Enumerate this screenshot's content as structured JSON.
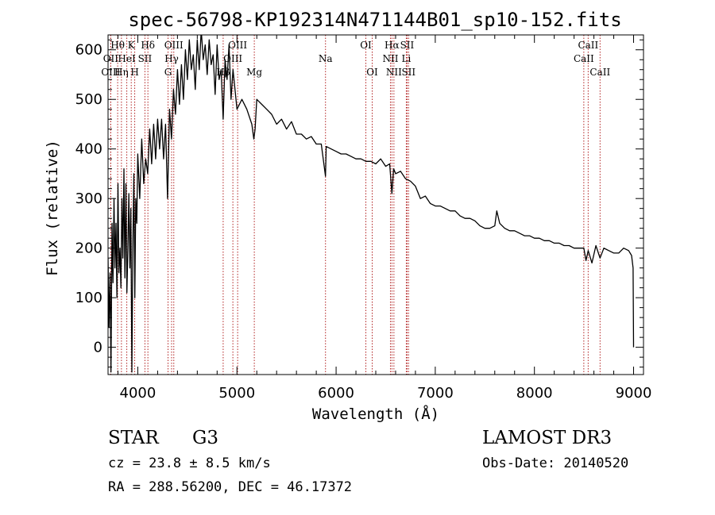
{
  "chart_data": {
    "type": "line",
    "title": "spec-56798-KP192314N471144B01_sp10-152.fits",
    "xlabel": "Wavelength (Å)",
    "ylabel": "Flux (relative)",
    "xlim": [
      3700,
      9100
    ],
    "ylim": [
      -55,
      630
    ],
    "xticks": [
      4000,
      5000,
      6000,
      7000,
      8000,
      9000
    ],
    "yticks": [
      0,
      100,
      200,
      300,
      400,
      500,
      600
    ],
    "line_color": "#000000",
    "marker_color": "#b22222",
    "series": [
      {
        "name": "flux",
        "x": [
          3700,
          3710,
          3720,
          3730,
          3740,
          3750,
          3760,
          3770,
          3780,
          3790,
          3800,
          3810,
          3820,
          3830,
          3840,
          3850,
          3860,
          3870,
          3880,
          3890,
          3900,
          3910,
          3920,
          3930,
          3940,
          3950,
          3960,
          3970,
          3980,
          3990,
          4000,
          4020,
          4040,
          4060,
          4080,
          4100,
          4120,
          4140,
          4160,
          4180,
          4200,
          4220,
          4240,
          4260,
          4280,
          4300,
          4320,
          4340,
          4360,
          4380,
          4400,
          4420,
          4440,
          4460,
          4480,
          4500,
          4520,
          4540,
          4560,
          4580,
          4600,
          4620,
          4640,
          4660,
          4680,
          4700,
          4720,
          4740,
          4760,
          4780,
          4800,
          4820,
          4840,
          4861,
          4880,
          4900,
          4920,
          4940,
          4960,
          4980,
          5000,
          5050,
          5100,
          5150,
          5170,
          5183,
          5200,
          5250,
          5300,
          5350,
          5400,
          5450,
          5500,
          5550,
          5600,
          5650,
          5700,
          5750,
          5800,
          5850,
          5893,
          5900,
          5950,
          6000,
          6050,
          6100,
          6150,
          6200,
          6250,
          6300,
          6350,
          6400,
          6450,
          6500,
          6540,
          6563,
          6580,
          6600,
          6650,
          6700,
          6750,
          6800,
          6850,
          6900,
          6950,
          7000,
          7050,
          7100,
          7150,
          7200,
          7250,
          7300,
          7350,
          7400,
          7450,
          7500,
          7550,
          7600,
          7620,
          7650,
          7700,
          7750,
          7800,
          7850,
          7900,
          7950,
          8000,
          8050,
          8100,
          8150,
          8200,
          8250,
          8300,
          8350,
          8400,
          8450,
          8498,
          8520,
          8542,
          8580,
          8620,
          8662,
          8700,
          8750,
          8800,
          8850,
          8900,
          8950,
          8980,
          8995,
          9000
        ],
        "y": [
          180,
          40,
          150,
          -50,
          250,
          130,
          300,
          160,
          250,
          100,
          330,
          150,
          200,
          120,
          300,
          180,
          360,
          140,
          330,
          110,
          200,
          310,
          160,
          280,
          -50,
          200,
          350,
          100,
          300,
          250,
          390,
          300,
          420,
          330,
          380,
          350,
          440,
          370,
          450,
          380,
          460,
          400,
          460,
          380,
          450,
          300,
          480,
          420,
          520,
          470,
          560,
          490,
          570,
          500,
          600,
          540,
          620,
          560,
          590,
          520,
          620,
          560,
          640,
          580,
          610,
          550,
          620,
          570,
          590,
          510,
          610,
          540,
          560,
          460,
          580,
          540,
          610,
          500,
          560,
          520,
          480,
          500,
          480,
          450,
          420,
          440,
          500,
          490,
          480,
          470,
          450,
          460,
          440,
          455,
          430,
          430,
          420,
          425,
          410,
          410,
          345,
          405,
          400,
          395,
          390,
          390,
          385,
          380,
          380,
          375,
          375,
          370,
          380,
          365,
          370,
          310,
          360,
          350,
          355,
          340,
          335,
          325,
          300,
          305,
          290,
          285,
          285,
          280,
          275,
          275,
          265,
          260,
          260,
          255,
          245,
          240,
          240,
          245,
          275,
          250,
          240,
          235,
          235,
          230,
          225,
          225,
          220,
          220,
          215,
          215,
          210,
          210,
          205,
          205,
          200,
          200,
          200,
          175,
          195,
          170,
          205,
          180,
          200,
          195,
          190,
          190,
          200,
          195,
          185,
          160,
          0
        ]
      }
    ],
    "line_markers": [
      {
        "name": "Hθ",
        "x": 3797,
        "row": 0
      },
      {
        "name": "OII",
        "x": 3727,
        "row": 1
      },
      {
        "name": "OIII",
        "x": 3727,
        "row": 2
      },
      {
        "name": "K",
        "x": 3934,
        "row": 0
      },
      {
        "name": "HeI",
        "x": 3889,
        "row": 1
      },
      {
        "name": "Hη",
        "x": 3835,
        "row": 2
      },
      {
        "name": "Hδ",
        "x": 4102,
        "row": 0
      },
      {
        "name": "SII",
        "x": 4072,
        "row": 1
      },
      {
        "name": "H",
        "x": 3969,
        "row": 2
      },
      {
        "name": "OIII",
        "x": 4363,
        "row": 0
      },
      {
        "name": "Hγ",
        "x": 4341,
        "row": 1
      },
      {
        "name": "G",
        "x": 4305,
        "row": 2
      },
      {
        "name": "OIII",
        "x": 5007,
        "row": 0
      },
      {
        "name": "OIII",
        "x": 4959,
        "row": 1
      },
      {
        "name": "Hβ",
        "x": 4861,
        "row": 2
      },
      {
        "name": "Mg",
        "x": 5175,
        "row": 2
      },
      {
        "name": "Na",
        "x": 5893,
        "row": 1
      },
      {
        "name": "OI",
        "x": 6300,
        "row": 0
      },
      {
        "name": "OI",
        "x": 6364,
        "row": 2
      },
      {
        "name": "Hα",
        "x": 6563,
        "row": 0
      },
      {
        "name": "NII",
        "x": 6548,
        "row": 1
      },
      {
        "name": "NII",
        "x": 6583,
        "row": 2
      },
      {
        "name": "SII",
        "x": 6716,
        "row": 0
      },
      {
        "name": "Li",
        "x": 6708,
        "row": 1
      },
      {
        "name": "SII",
        "x": 6731,
        "row": 2
      },
      {
        "name": "CaII",
        "x": 8542,
        "row": 0
      },
      {
        "name": "CaII",
        "x": 8498,
        "row": 1
      },
      {
        "name": "CaII",
        "x": 8662,
        "row": 2
      }
    ]
  },
  "info": {
    "class": "STAR",
    "subclass": "G3",
    "survey": "LAMOST DR3",
    "cz": "cz = 23.8 ± 8.5 km/s",
    "obs_date": "Obs-Date: 20140520",
    "coords": "RA = 288.56200, DEC =  46.17372"
  }
}
